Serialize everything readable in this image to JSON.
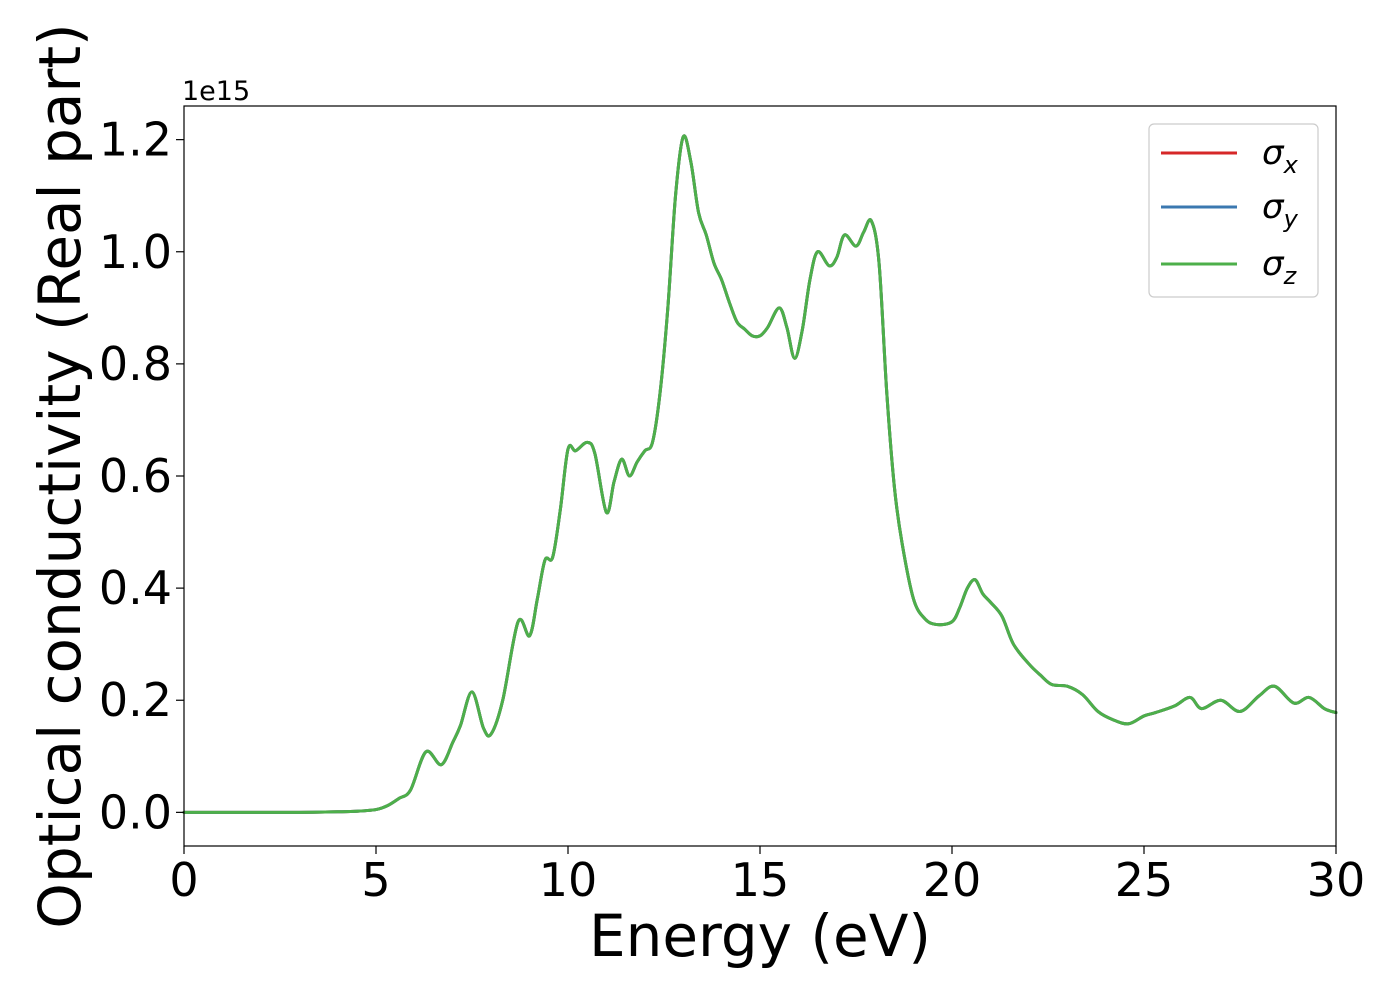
{
  "chart_data": {
    "type": "line",
    "title": "",
    "xlabel": "Energy (eV)",
    "ylabel": "Optical conductivity (Real part)",
    "y_offset_text": "1e15",
    "xlim": [
      0,
      30
    ],
    "ylim": [
      -0.06,
      1.26
    ],
    "y_scale_factor": 1000000000000000.0,
    "xticks": [
      0,
      5,
      10,
      15,
      20,
      25,
      30
    ],
    "xtick_labels": [
      "0",
      "5",
      "10",
      "15",
      "20",
      "25",
      "30"
    ],
    "yticks": [
      0.0,
      0.2,
      0.4,
      0.6,
      0.8,
      1.0,
      1.2
    ],
    "ytick_labels": [
      "0.0",
      "0.2",
      "0.4",
      "0.6",
      "0.8",
      "1.0",
      "1.2"
    ],
    "grid": false,
    "legend": {
      "placement": "top-right",
      "entries": [
        {
          "symbol": "σ",
          "subscript": "x",
          "color": "#d62728"
        },
        {
          "symbol": "σ",
          "subscript": "y",
          "color": "#3b78b0"
        },
        {
          "symbol": "σ",
          "subscript": "z",
          "color": "#4daf4a"
        }
      ]
    },
    "x": [
      0,
      1,
      2,
      3,
      4,
      4.5,
      5,
      5.3,
      5.6,
      5.9,
      6.3,
      6.7,
      7.0,
      7.2,
      7.5,
      7.8,
      8.0,
      8.3,
      8.7,
      9.0,
      9.2,
      9.4,
      9.6,
      9.8,
      10.0,
      10.2,
      10.5,
      10.7,
      11.0,
      11.2,
      11.4,
      11.6,
      11.8,
      12.0,
      12.2,
      12.4,
      12.6,
      12.8,
      13.0,
      13.2,
      13.4,
      13.6,
      13.8,
      14.0,
      14.2,
      14.4,
      14.6,
      14.8,
      15.0,
      15.2,
      15.5,
      15.7,
      15.9,
      16.1,
      16.3,
      16.5,
      16.8,
      17.0,
      17.2,
      17.5,
      17.7,
      17.9,
      18.1,
      18.3,
      18.5,
      18.7,
      19.0,
      19.3,
      19.6,
      20.0,
      20.2,
      20.4,
      20.6,
      20.8,
      21.0,
      21.3,
      21.6,
      22.0,
      22.3,
      22.6,
      23.0,
      23.4,
      23.8,
      24.2,
      24.6,
      25.0,
      25.3,
      25.8,
      26.2,
      26.5,
      27.0,
      27.5,
      28.0,
      28.4,
      28.9,
      29.3,
      29.7,
      30.0
    ],
    "series": [
      {
        "name": "σ_x",
        "color": "#d62728",
        "values": [
          0.0,
          0.0,
          0.0,
          0.0,
          0.001,
          0.002,
          0.005,
          0.012,
          0.025,
          0.04,
          0.108,
          0.085,
          0.125,
          0.155,
          0.215,
          0.15,
          0.14,
          0.2,
          0.34,
          0.315,
          0.38,
          0.45,
          0.455,
          0.54,
          0.648,
          0.645,
          0.66,
          0.64,
          0.535,
          0.59,
          0.63,
          0.6,
          0.625,
          0.645,
          0.66,
          0.75,
          0.9,
          1.1,
          1.205,
          1.16,
          1.07,
          1.03,
          0.98,
          0.95,
          0.91,
          0.875,
          0.862,
          0.85,
          0.85,
          0.865,
          0.9,
          0.865,
          0.81,
          0.86,
          0.95,
          1.0,
          0.975,
          0.99,
          1.03,
          1.01,
          1.035,
          1.055,
          0.98,
          0.75,
          0.58,
          0.48,
          0.38,
          0.345,
          0.335,
          0.34,
          0.365,
          0.4,
          0.415,
          0.39,
          0.375,
          0.35,
          0.3,
          0.265,
          0.245,
          0.228,
          0.225,
          0.21,
          0.18,
          0.165,
          0.158,
          0.172,
          0.178,
          0.19,
          0.205,
          0.185,
          0.2,
          0.18,
          0.208,
          0.225,
          0.195,
          0.205,
          0.185,
          0.178
        ]
      },
      {
        "name": "σ_y",
        "color": "#3b78b0",
        "values": [
          0.0,
          0.0,
          0.0,
          0.0,
          0.001,
          0.002,
          0.005,
          0.012,
          0.025,
          0.04,
          0.108,
          0.085,
          0.125,
          0.155,
          0.215,
          0.15,
          0.14,
          0.2,
          0.34,
          0.315,
          0.38,
          0.45,
          0.455,
          0.54,
          0.648,
          0.645,
          0.66,
          0.64,
          0.535,
          0.59,
          0.63,
          0.6,
          0.625,
          0.645,
          0.66,
          0.75,
          0.9,
          1.1,
          1.205,
          1.16,
          1.07,
          1.03,
          0.98,
          0.95,
          0.91,
          0.875,
          0.862,
          0.85,
          0.85,
          0.865,
          0.9,
          0.865,
          0.81,
          0.86,
          0.95,
          1.0,
          0.975,
          0.99,
          1.03,
          1.01,
          1.035,
          1.055,
          0.98,
          0.75,
          0.58,
          0.48,
          0.38,
          0.345,
          0.335,
          0.34,
          0.365,
          0.4,
          0.415,
          0.39,
          0.375,
          0.35,
          0.3,
          0.265,
          0.245,
          0.228,
          0.225,
          0.21,
          0.18,
          0.165,
          0.158,
          0.172,
          0.178,
          0.19,
          0.205,
          0.185,
          0.2,
          0.18,
          0.208,
          0.225,
          0.195,
          0.205,
          0.185,
          0.178
        ]
      },
      {
        "name": "σ_z",
        "color": "#4daf4a",
        "values": [
          0.0,
          0.0,
          0.0,
          0.0,
          0.001,
          0.002,
          0.005,
          0.012,
          0.025,
          0.04,
          0.108,
          0.085,
          0.125,
          0.155,
          0.215,
          0.15,
          0.14,
          0.2,
          0.34,
          0.315,
          0.38,
          0.45,
          0.455,
          0.54,
          0.648,
          0.645,
          0.66,
          0.64,
          0.535,
          0.59,
          0.63,
          0.6,
          0.625,
          0.645,
          0.66,
          0.75,
          0.9,
          1.1,
          1.205,
          1.16,
          1.07,
          1.03,
          0.98,
          0.95,
          0.91,
          0.875,
          0.862,
          0.85,
          0.85,
          0.865,
          0.9,
          0.865,
          0.81,
          0.86,
          0.95,
          1.0,
          0.975,
          0.99,
          1.03,
          1.01,
          1.035,
          1.055,
          0.98,
          0.75,
          0.58,
          0.48,
          0.38,
          0.345,
          0.335,
          0.34,
          0.365,
          0.4,
          0.415,
          0.39,
          0.375,
          0.35,
          0.3,
          0.265,
          0.245,
          0.228,
          0.225,
          0.21,
          0.18,
          0.165,
          0.158,
          0.172,
          0.178,
          0.19,
          0.205,
          0.185,
          0.2,
          0.18,
          0.208,
          0.225,
          0.195,
          0.205,
          0.185,
          0.178
        ]
      }
    ]
  }
}
